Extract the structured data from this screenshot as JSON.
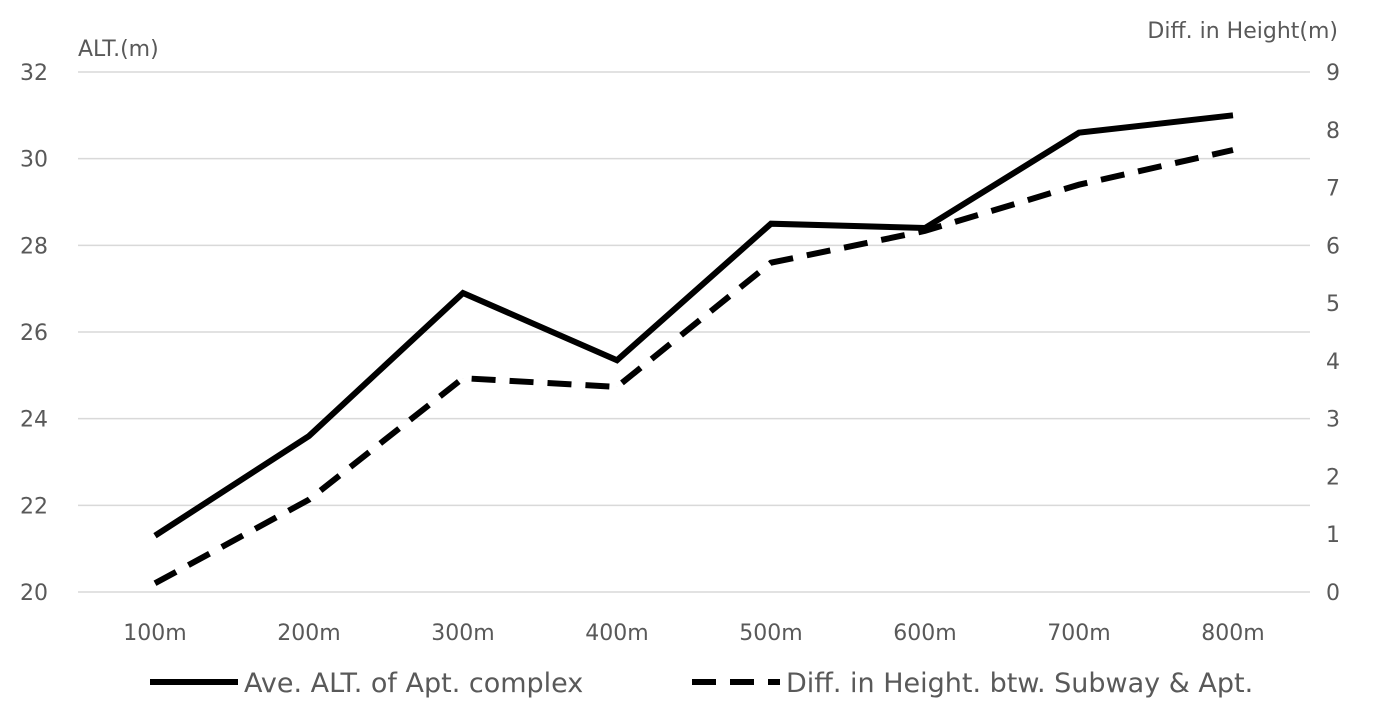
{
  "chart_data": {
    "type": "line",
    "categories": [
      "100m",
      "200m",
      "300m",
      "400m",
      "500m",
      "600m",
      "700m",
      "800m"
    ],
    "y_left": {
      "label": "ALT.(m)",
      "range": [
        20,
        32
      ],
      "ticks": [
        20,
        22,
        24,
        26,
        28,
        30,
        32
      ]
    },
    "y_right": {
      "label": "Diff. in Height(m)",
      "range": [
        0,
        9
      ],
      "ticks": [
        0,
        1,
        2,
        3,
        4,
        5,
        6,
        7,
        8,
        9
      ]
    },
    "grid": true,
    "legend_position": "bottom",
    "series": [
      {
        "name": "Ave. ALT. of Apt. complex",
        "axis": "left",
        "style": "solid",
        "color": "#000000",
        "values": [
          21.3,
          23.6,
          26.9,
          25.35,
          28.5,
          28.4,
          30.6,
          31.0
        ]
      },
      {
        "name": "Diff. in Height. btw. Subway & Apt.",
        "axis": "right",
        "style": "dashed",
        "color": "#000000",
        "values": [
          0.15,
          1.6,
          3.7,
          3.55,
          5.7,
          6.25,
          7.05,
          7.65
        ]
      }
    ]
  }
}
